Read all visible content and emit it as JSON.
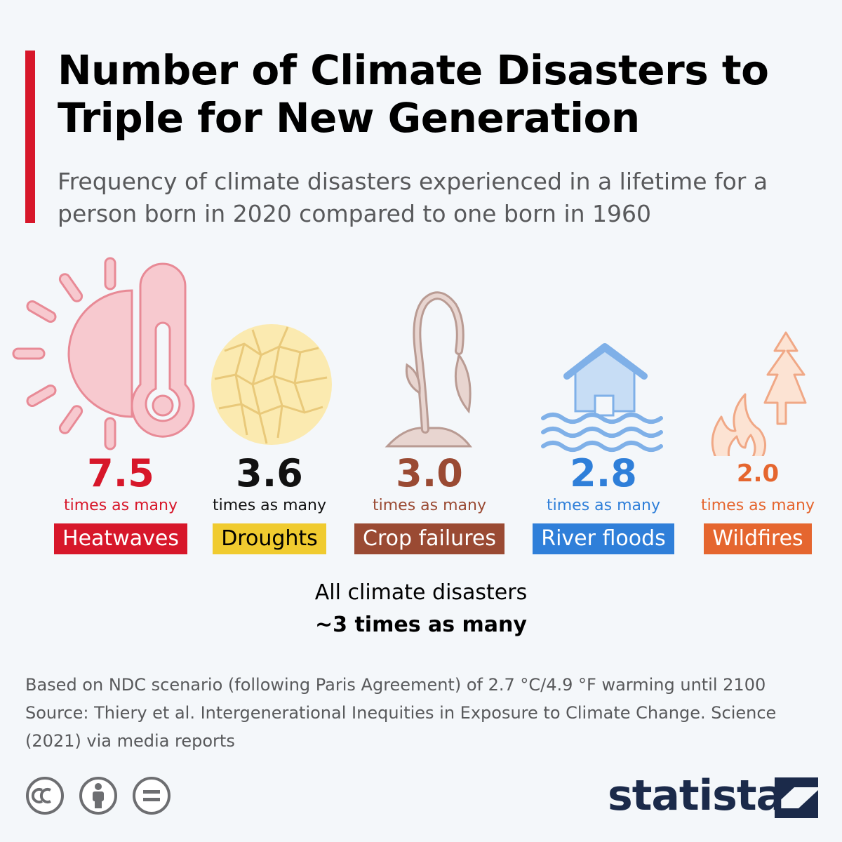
{
  "title": "Number of Climate Disasters to Triple for New Generation",
  "subtitle": "Frequency of climate disasters experienced in a lifetime for a person born in 2020 compared to one born in 1960",
  "chart_data": {
    "type": "table",
    "categories": [
      "Heatwaves",
      "Droughts",
      "Crop failures",
      "River floods",
      "Wildfires"
    ],
    "values": [
      7.5,
      3.6,
      3.0,
      2.8,
      2.0
    ],
    "value_labels": [
      "7.5",
      "3.6",
      "3.0",
      "2.8",
      "2.0"
    ],
    "unit_label": "times as many",
    "colors": [
      "#d7172a",
      "#f0cb2f",
      "#9a4a33",
      "#2f7fd9",
      "#e5662f"
    ],
    "value_colors": [
      "#d7172a",
      "#111111",
      "#9a4a33",
      "#2f7fd9",
      "#e5662f"
    ],
    "badge_text_colors": [
      "#ffffff",
      "#000000",
      "#ffffff",
      "#ffffff",
      "#ffffff"
    ],
    "icons": [
      "heatwave-icon",
      "drought-icon",
      "crop-failure-icon",
      "river-flood-icon",
      "wildfire-icon"
    ],
    "summary_label": "All climate disasters",
    "summary_value": "~3 times as many"
  },
  "footnote": {
    "note": "Based on NDC scenario (following Paris Agreement) of 2.7 °C/4.9 °F warming until 2100",
    "source": "Source: Thiery et al. Intergenerational Inequities in Exposure to Climate Change. Science (2021) via media reports"
  },
  "license_icons": [
    "cc-icon",
    "attribution-icon",
    "no-derivatives-icon"
  ],
  "brand": {
    "name": "statista",
    "color": "#1b2a4a"
  }
}
